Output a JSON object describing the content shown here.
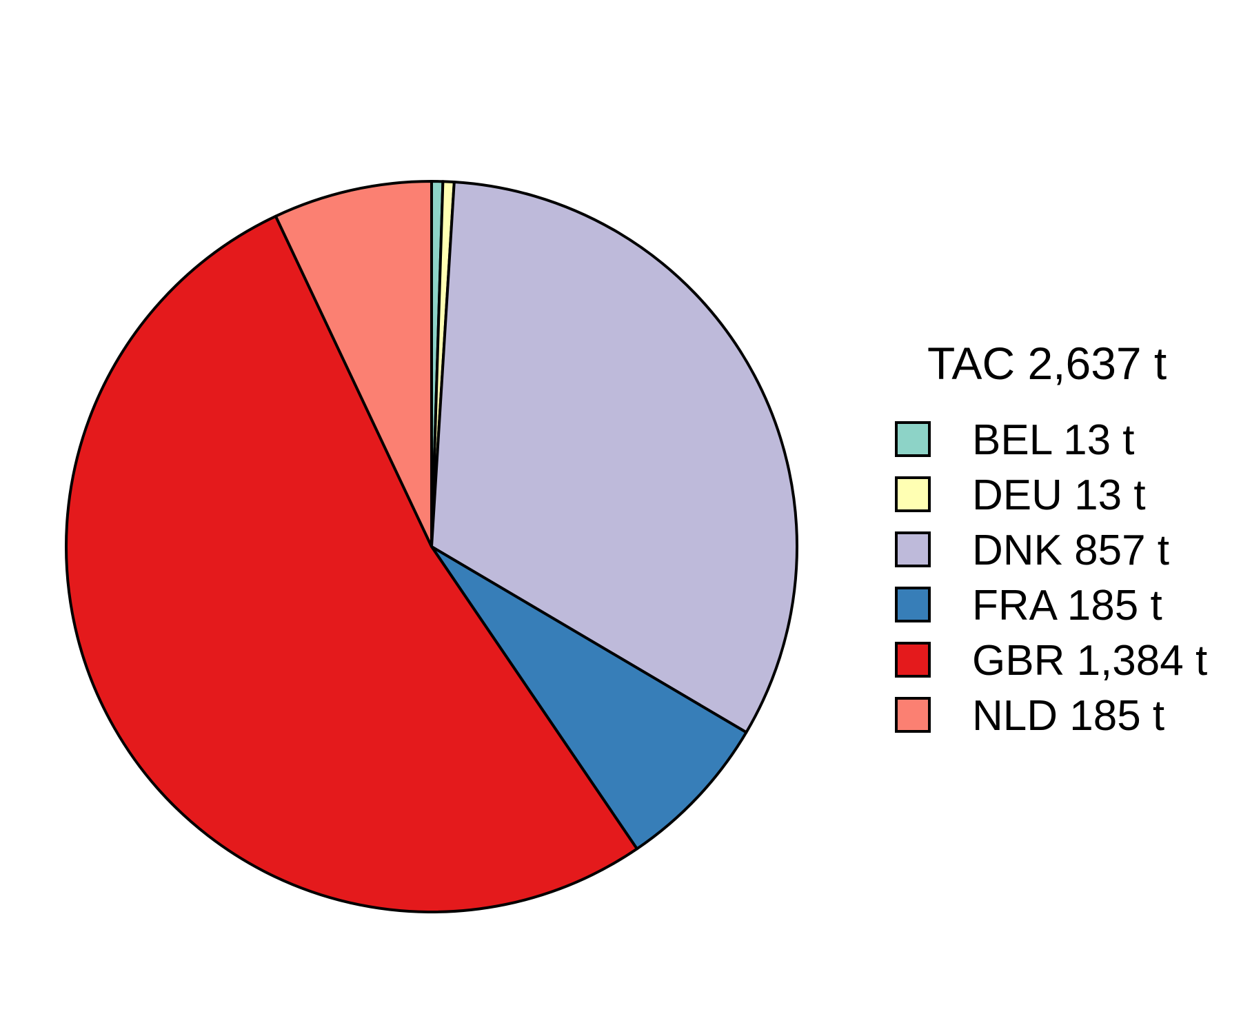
{
  "chart_data": {
    "type": "pie",
    "legend_title": "TAC 2,637 t",
    "legend_position": "right",
    "slices": [
      {
        "name": "BEL",
        "label": "BEL 13 t",
        "value": 13,
        "color": "#8DD3C7"
      },
      {
        "name": "DEU",
        "label": "DEU 13 t",
        "value": 13,
        "color": "#FFFFB3"
      },
      {
        "name": "DNK",
        "label": "DNK 857 t",
        "value": 857,
        "color": "#BEBADA"
      },
      {
        "name": "FRA",
        "label": "FRA 185 t",
        "value": 185,
        "color": "#377EB8"
      },
      {
        "name": "GBR",
        "label": "GBR 1,384 t",
        "value": 1384,
        "color": "#E41A1C"
      },
      {
        "name": "NLD",
        "label": "NLD 185 t",
        "value": 185,
        "color": "#FB8072"
      }
    ]
  }
}
